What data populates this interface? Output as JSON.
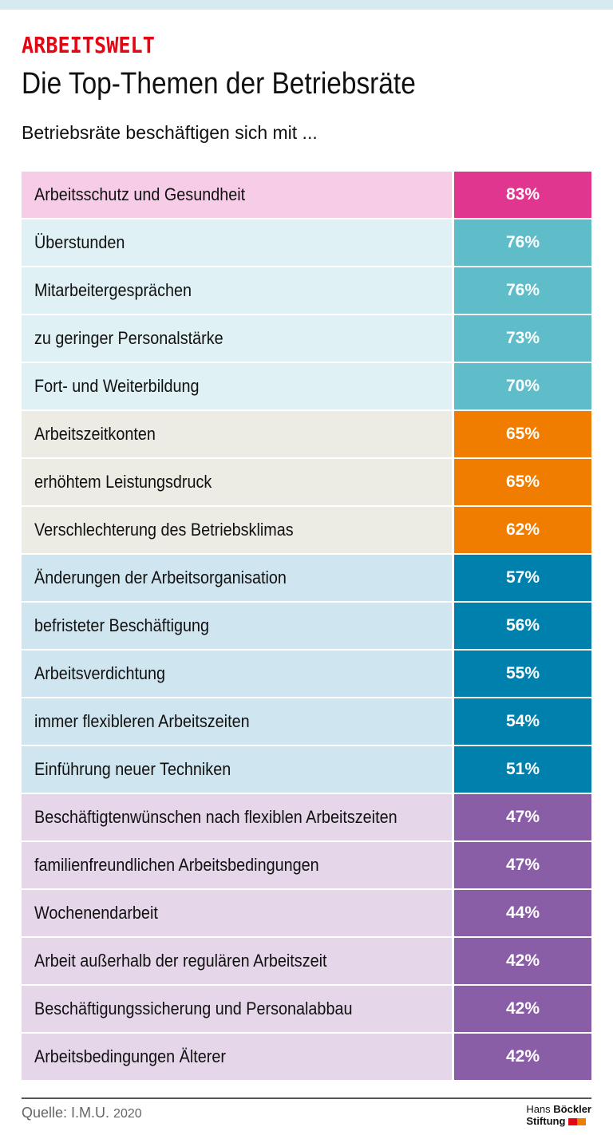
{
  "kicker": "ARBEITSWELT",
  "title": "Die Top-Themen der Betriebsräte",
  "subtitle": "Betriebsräte beschäftigen sich mit ...",
  "source": {
    "label": "Quelle: I.M.U.",
    "year": "2020"
  },
  "logo": {
    "line1a": "Hans",
    "line1b": "Böckler",
    "line2": "Stiftung",
    "colors": [
      "#e30613",
      "#f07d00"
    ]
  },
  "groups": {
    "pink": {
      "bg": "#f7cce6",
      "accent": "#e0368f"
    },
    "teal": {
      "bg": "#dff1f4",
      "accent": "#5fbcc9"
    },
    "orange": {
      "bg": "#ecebe4",
      "accent": "#f07d00"
    },
    "blue": {
      "bg": "#cfe5ef",
      "accent": "#0081ad"
    },
    "purple": {
      "bg": "#e6d6ea",
      "accent": "#8a5da7"
    }
  },
  "chart_data": {
    "type": "table",
    "title": "Die Top-Themen der Betriebsräte",
    "subtitle": "Betriebsräte beschäftigen sich mit ...",
    "unit": "%",
    "rows": [
      {
        "label": "Arbeitsschutz und Gesundheit",
        "value": 83,
        "display": "83%",
        "group": "pink"
      },
      {
        "label": "Überstunden",
        "value": 76,
        "display": "76%",
        "group": "teal"
      },
      {
        "label": "Mitarbeitergesprächen",
        "value": 76,
        "display": "76%",
        "group": "teal"
      },
      {
        "label": "zu geringer Personalstärke",
        "value": 73,
        "display": "73%",
        "group": "teal"
      },
      {
        "label": "Fort- und Weiterbildung",
        "value": 70,
        "display": "70%",
        "group": "teal"
      },
      {
        "label": "Arbeitszeitkonten",
        "value": 65,
        "display": "65%",
        "group": "orange"
      },
      {
        "label": "erhöhtem Leistungsdruck",
        "value": 65,
        "display": "65%",
        "group": "orange"
      },
      {
        "label": "Verschlechterung des Betriebsklimas",
        "value": 62,
        "display": "62%",
        "group": "orange"
      },
      {
        "label": "Änderungen der Arbeitsorganisation",
        "value": 57,
        "display": "57%",
        "group": "blue"
      },
      {
        "label": "befristeter Beschäftigung",
        "value": 56,
        "display": "56%",
        "group": "blue"
      },
      {
        "label": "Arbeitsverdichtung",
        "value": 55,
        "display": "55%",
        "group": "blue"
      },
      {
        "label": "immer flexibleren Arbeitszeiten",
        "value": 54,
        "display": "54%",
        "group": "blue"
      },
      {
        "label": "Einführung neuer Techniken",
        "value": 51,
        "display": "51%",
        "group": "blue"
      },
      {
        "label": "Beschäftigtenwünschen nach flexiblen Arbeitszeiten",
        "value": 47,
        "display": "47%",
        "group": "purple"
      },
      {
        "label": "familienfreundlichen Arbeitsbedingungen",
        "value": 47,
        "display": "47%",
        "group": "purple"
      },
      {
        "label": "Wochenendarbeit",
        "value": 44,
        "display": "44%",
        "group": "purple"
      },
      {
        "label": "Arbeit außerhalb der regulären Arbeitszeit",
        "value": 42,
        "display": "42%",
        "group": "purple"
      },
      {
        "label": "Beschäftigungssicherung und Personalabbau",
        "value": 42,
        "display": "42%",
        "group": "purple"
      },
      {
        "label": "Arbeitsbedingungen Älterer",
        "value": 42,
        "display": "42%",
        "group": "purple"
      }
    ]
  }
}
